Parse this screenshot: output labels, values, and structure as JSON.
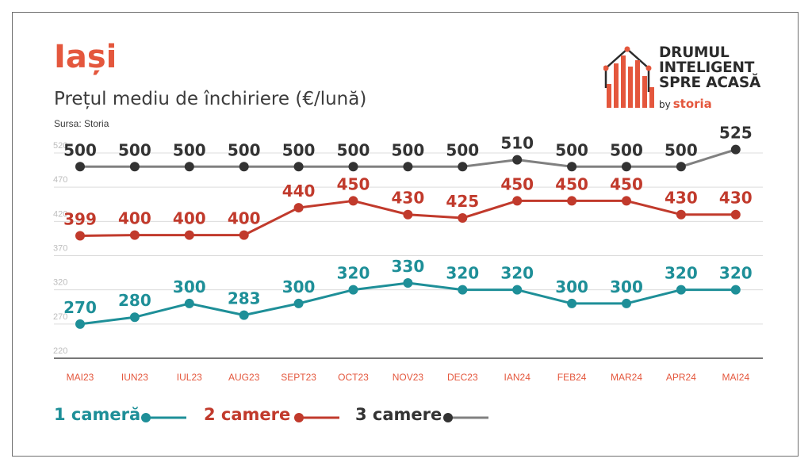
{
  "header": {
    "title": "Iași",
    "subtitle": "Prețul mediu de închiriere (€/lună)",
    "source": "Sursa: Storia"
  },
  "logo": {
    "lines": [
      "DRUMUL",
      "INTELIGENT",
      "SPRE ACASĂ"
    ],
    "by": "by",
    "brand": "storia"
  },
  "colors": {
    "accent": "#e4573d",
    "teal": "#1e8f98",
    "red": "#c13a2c",
    "gray": "#808080",
    "dark": "#333333",
    "axis_text": "#e4573d",
    "tick_text": "#bdbdbd"
  },
  "chart_data": {
    "type": "line",
    "categories": [
      "MAI23",
      "IUN23",
      "IUL23",
      "AUG23",
      "SEPT23",
      "OCT23",
      "NOV23",
      "DEC23",
      "IAN24",
      "FEB24",
      "MAR24",
      "APR24",
      "MAI24"
    ],
    "series": [
      {
        "name": "1 cameră",
        "values": [
          270,
          280,
          300,
          283,
          300,
          320,
          330,
          320,
          320,
          300,
          300,
          320,
          320
        ]
      },
      {
        "name": "2 camere",
        "values": [
          399,
          400,
          400,
          400,
          440,
          450,
          430,
          425,
          450,
          450,
          450,
          430,
          430
        ]
      },
      {
        "name": "3 camere",
        "values": [
          500,
          500,
          500,
          500,
          500,
          500,
          500,
          500,
          510,
          500,
          500,
          500,
          525
        ]
      }
    ],
    "yticks": [
      220,
      270,
      320,
      370,
      420,
      470,
      520
    ],
    "ylim": [
      220,
      520
    ],
    "grid": true,
    "legend_position": "bottom"
  }
}
